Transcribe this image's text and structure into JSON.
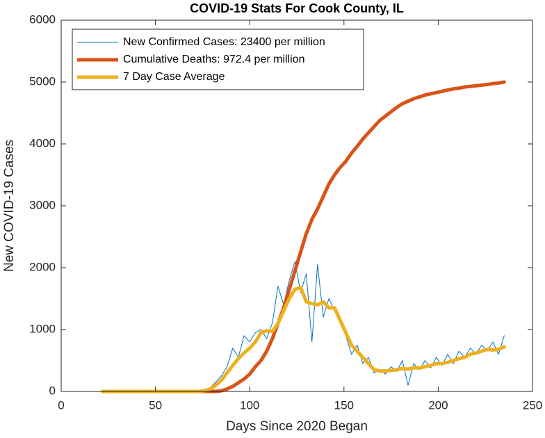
{
  "chart_data": {
    "type": "line",
    "title": "COVID-19 Stats For Cook County, IL",
    "xlabel": "Days Since 2020 Began",
    "ylabel": "New COVID-19 Cases",
    "x": [
      22,
      25,
      28,
      31,
      34,
      37,
      40,
      43,
      46,
      49,
      52,
      55,
      58,
      61,
      64,
      67,
      70,
      73,
      76,
      79,
      82,
      85,
      88,
      91,
      94,
      97,
      100,
      103,
      106,
      109,
      112,
      115,
      118,
      121,
      124,
      127,
      130,
      133,
      136,
      139,
      142,
      145,
      148,
      151,
      154,
      157,
      160,
      163,
      166,
      169,
      172,
      175,
      178,
      181,
      184,
      187,
      190,
      193,
      196,
      199,
      202,
      205,
      208,
      211,
      214,
      217,
      220,
      223,
      226,
      229,
      232,
      235
    ],
    "series": [
      {
        "name": "New Confirmed Cases: 23400 per million",
        "color": "#0072BD",
        "width": 1,
        "values": [
          0,
          0,
          0,
          0,
          0,
          0,
          0,
          0,
          0,
          0,
          0,
          0,
          0,
          0,
          0,
          0,
          0,
          0,
          20,
          60,
          150,
          250,
          400,
          700,
          550,
          900,
          800,
          950,
          1000,
          850,
          1100,
          1700,
          1400,
          1800,
          2100,
          1600,
          1900,
          800,
          2050,
          1200,
          1500,
          1300,
          1100,
          900,
          600,
          750,
          450,
          550,
          300,
          350,
          280,
          400,
          320,
          500,
          100,
          450,
          350,
          500,
          380,
          550,
          420,
          600,
          450,
          650,
          550,
          700,
          600,
          750,
          650,
          800,
          600,
          900
        ]
      },
      {
        "name": "Cumulative Deaths: 972.4 per million",
        "color": "#D95319",
        "width": 5,
        "values": [
          0,
          0,
          0,
          0,
          0,
          0,
          0,
          0,
          0,
          0,
          0,
          0,
          0,
          0,
          0,
          0,
          0,
          0,
          0,
          0,
          0,
          10,
          40,
          80,
          140,
          200,
          280,
          400,
          500,
          650,
          850,
          1100,
          1350,
          1650,
          1950,
          2250,
          2550,
          2780,
          2950,
          3150,
          3350,
          3500,
          3620,
          3720,
          3850,
          3960,
          4080,
          4180,
          4280,
          4380,
          4450,
          4520,
          4590,
          4650,
          4690,
          4730,
          4760,
          4790,
          4810,
          4830,
          4850,
          4870,
          4890,
          4900,
          4920,
          4930,
          4940,
          4950,
          4960,
          4975,
          4985,
          5000
        ]
      },
      {
        "name": "7 Day Case Average",
        "color": "#EDB120",
        "width": 5,
        "values": [
          0,
          0,
          0,
          0,
          0,
          0,
          0,
          0,
          0,
          0,
          0,
          0,
          0,
          0,
          0,
          0,
          0,
          0,
          10,
          40,
          100,
          180,
          300,
          420,
          530,
          620,
          700,
          800,
          950,
          980,
          970,
          1100,
          1300,
          1500,
          1650,
          1680,
          1450,
          1420,
          1400,
          1450,
          1350,
          1350,
          1150,
          950,
          750,
          650,
          550,
          450,
          350,
          330,
          330,
          340,
          350,
          370,
          360,
          380,
          380,
          400,
          420,
          450,
          450,
          470,
          500,
          530,
          550,
          600,
          620,
          650,
          680,
          670,
          680,
          720
        ]
      }
    ],
    "xlim": [
      0,
      250
    ],
    "xticks": [
      0,
      50,
      100,
      150,
      200,
      250
    ],
    "ylim": [
      0,
      6000
    ],
    "yticks": [
      0,
      1000,
      2000,
      3000,
      4000,
      5000,
      6000
    ],
    "grid": false,
    "legend": "northwest"
  }
}
